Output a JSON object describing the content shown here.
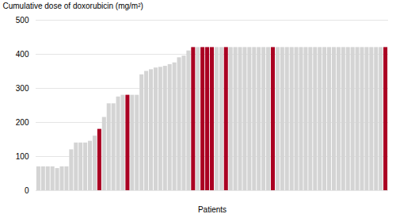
{
  "chart_data": {
    "type": "bar",
    "xlabel": "Patients",
    "ylabel": "Cumulative dose of doxorubicin (mg/m²)",
    "categories": [
      null,
      null,
      null,
      null,
      null,
      null,
      null,
      null,
      null,
      null,
      null,
      null,
      null,
      null,
      null,
      null,
      null,
      null,
      null,
      null,
      null,
      null,
      null,
      null,
      null,
      null,
      null,
      null,
      null,
      null,
      null,
      null,
      null,
      null,
      null,
      null,
      null,
      null,
      null,
      null,
      null,
      null,
      null,
      null,
      null,
      null,
      null,
      null,
      null,
      null,
      null,
      null,
      null,
      null,
      null,
      null,
      null,
      null,
      null,
      null,
      null,
      null,
      null,
      null,
      null,
      null,
      null,
      null,
      null,
      null,
      null,
      null,
      null,
      null,
      null
    ],
    "values": [
      70,
      70,
      70,
      70,
      65,
      70,
      70,
      120,
      140,
      140,
      140,
      145,
      160,
      180,
      215,
      255,
      255,
      275,
      280,
      280,
      280,
      280,
      340,
      350,
      355,
      360,
      362,
      365,
      370,
      375,
      390,
      395,
      410,
      420,
      420,
      420,
      420,
      420,
      420,
      420,
      420,
      420,
      420,
      420,
      420,
      420,
      420,
      420,
      420,
      420,
      420,
      420,
      420,
      420,
      420,
      420,
      420,
      420,
      420,
      420,
      420,
      420,
      420,
      420,
      420,
      420,
      420,
      420,
      420,
      420,
      420,
      420,
      420,
      420,
      420
    ],
    "colors": [
      "#d4d4d4",
      "#d4d4d4",
      "#d4d4d4",
      "#d4d4d4",
      "#d4d4d4",
      "#d4d4d4",
      "#d4d4d4",
      "#d4d4d4",
      "#d4d4d4",
      "#d4d4d4",
      "#d4d4d4",
      "#d4d4d4",
      "#d4d4d4",
      "#aa0022",
      "#d4d4d4",
      "#d4d4d4",
      "#d4d4d4",
      "#d4d4d4",
      "#d4d4d4",
      "#aa0022",
      "#d4d4d4",
      "#d4d4d4",
      "#d4d4d4",
      "#d4d4d4",
      "#d4d4d4",
      "#d4d4d4",
      "#d4d4d4",
      "#d4d4d4",
      "#d4d4d4",
      "#d4d4d4",
      "#d4d4d4",
      "#d4d4d4",
      "#d4d4d4",
      "#aa0022",
      "#d4d4d4",
      "#aa0022",
      "#aa0022",
      "#aa0022",
      "#d4d4d4",
      "#d4d4d4",
      "#aa0022",
      "#d4d4d4",
      "#d4d4d4",
      "#d4d4d4",
      "#d4d4d4",
      "#d4d4d4",
      "#d4d4d4",
      "#d4d4d4",
      "#d4d4d4",
      "#d4d4d4",
      "#aa0022",
      "#d4d4d4",
      "#d4d4d4",
      "#d4d4d4",
      "#d4d4d4",
      "#d4d4d4",
      "#d4d4d4",
      "#d4d4d4",
      "#d4d4d4",
      "#d4d4d4",
      "#d4d4d4",
      "#d4d4d4",
      "#d4d4d4",
      "#d4d4d4",
      "#d4d4d4",
      "#d4d4d4",
      "#d4d4d4",
      "#d4d4d4",
      "#d4d4d4",
      "#d4d4d4",
      "#d4d4d4",
      "#d4d4d4",
      "#d4d4d4",
      "#d4d4d4",
      "#aa0022"
    ],
    "ylim": [
      0,
      500
    ],
    "yticks": [
      0,
      100,
      200,
      300,
      400,
      500
    ],
    "grid": true,
    "tick_labels": "y"
  }
}
